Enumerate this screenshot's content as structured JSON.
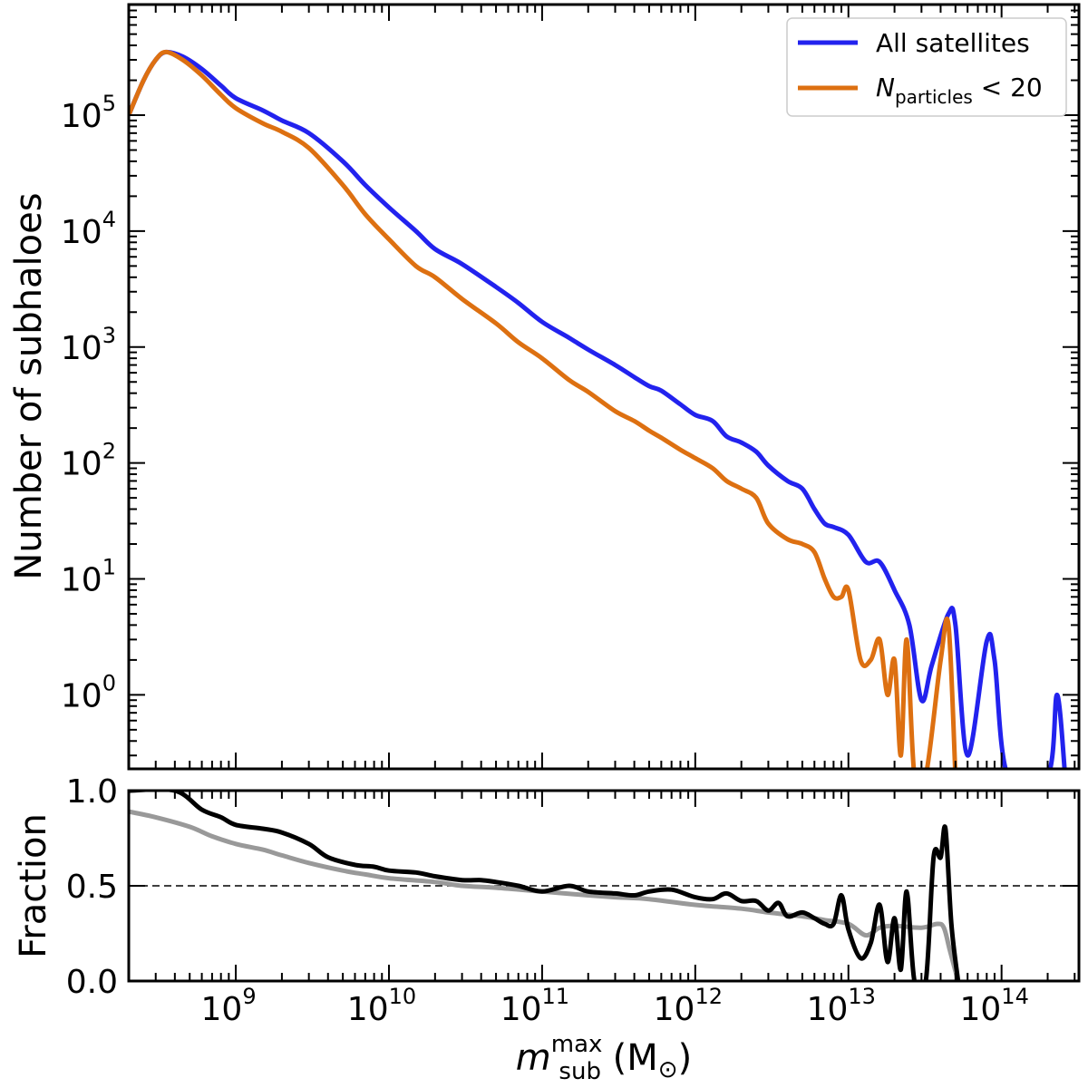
{
  "chart_data": [
    {
      "type": "line",
      "panel": "top",
      "ylabel": "Number of subhaloes",
      "xscale": "log",
      "yscale": "log",
      "xlim": [
        200000000.0,
        320000000000000.0
      ],
      "ylim": [
        0.23,
        900000.0
      ],
      "grid": false,
      "legend_position": "top-right",
      "y_tick_values": [
        1,
        10,
        100,
        1000,
        10000,
        100000
      ],
      "y_tick_labels": [
        {
          "base": "10",
          "exp": "0"
        },
        {
          "base": "10",
          "exp": "1"
        },
        {
          "base": "10",
          "exp": "2"
        },
        {
          "base": "10",
          "exp": "3"
        },
        {
          "base": "10",
          "exp": "4"
        },
        {
          "base": "10",
          "exp": "5"
        }
      ],
      "series": [
        {
          "name": "All satellites",
          "color": "#2222ee",
          "points": [
            [
              200000000.0,
              100000
            ],
            [
              250000000.0,
              200000
            ],
            [
              300000000.0,
              300000
            ],
            [
              350000000.0,
              350000
            ],
            [
              450000000.0,
              320000
            ],
            [
              600000000.0,
              250000
            ],
            [
              800000000.0,
              180000
            ],
            [
              1000000000.0,
              140000
            ],
            [
              1500000000.0,
              110000
            ],
            [
              2000000000.0,
              90000
            ],
            [
              3000000000.0,
              70000
            ],
            [
              5000000000.0,
              40000
            ],
            [
              7000000000.0,
              25000
            ],
            [
              10000000000.0,
              16000
            ],
            [
              15000000000.0,
              10000
            ],
            [
              20000000000.0,
              7000
            ],
            [
              30000000000.0,
              5200
            ],
            [
              50000000000.0,
              3300
            ],
            [
              70000000000.0,
              2400
            ],
            [
              100000000000.0,
              1650
            ],
            [
              150000000000.0,
              1200
            ],
            [
              200000000000.0,
              950
            ],
            [
              300000000000.0,
              700
            ],
            [
              400000000000.0,
              550
            ],
            [
              500000000000.0,
              460
            ],
            [
              600000000000.0,
              420
            ],
            [
              800000000000.0,
              320
            ],
            [
              1000000000000.0,
              260
            ],
            [
              1300000000000.0,
              230
            ],
            [
              1600000000000.0,
              170
            ],
            [
              2000000000000.0,
              150
            ],
            [
              2500000000000.0,
              125
            ],
            [
              3000000000000.0,
              95
            ],
            [
              4000000000000.0,
              70
            ],
            [
              5000000000000.0,
              60
            ],
            [
              6000000000000.0,
              40
            ],
            [
              7000000000000.0,
              30
            ],
            [
              8000000000000.0,
              28
            ],
            [
              10000000000000.0,
              24
            ],
            [
              13000000000000.0,
              14
            ],
            [
              16000000000000.0,
              14
            ],
            [
              20000000000000.0,
              8
            ],
            [
              25000000000000.0,
              4
            ],
            [
              30000000000000.0,
              0.9
            ],
            [
              35000000000000.0,
              1.8
            ],
            [
              45000000000000.0,
              5
            ],
            [
              50000000000000.0,
              4
            ],
            [
              60000000000000.0,
              0.3
            ],
            [
              80000000000000.0,
              2.9
            ],
            [
              90000000000000.0,
              2
            ],
            [
              110000000000000.0,
              0.2
            ],
            [
              200000000000000.0,
              0.2
            ],
            [
              230000000000000.0,
              1
            ],
            [
              260000000000000.0,
              0.2
            ]
          ]
        },
        {
          "name_parts": {
            "symbol": "N",
            "subscript": "particles",
            "suffix": " < 20"
          },
          "color": "#dd7011",
          "points": [
            [
              200000000.0,
              100000
            ],
            [
              250000000.0,
              200000
            ],
            [
              300000000.0,
              300000
            ],
            [
              350000000.0,
              350000
            ],
            [
              450000000.0,
              300000
            ],
            [
              600000000.0,
              220000
            ],
            [
              800000000.0,
              150000
            ],
            [
              1000000000.0,
              115000
            ],
            [
              1500000000.0,
              85000
            ],
            [
              2000000000.0,
              72000
            ],
            [
              3000000000.0,
              52000
            ],
            [
              5000000000.0,
              25000
            ],
            [
              7000000000.0,
              14000
            ],
            [
              10000000000.0,
              8500
            ],
            [
              15000000000.0,
              5000
            ],
            [
              20000000000.0,
              4000
            ],
            [
              30000000000.0,
              2600
            ],
            [
              50000000000.0,
              1600
            ],
            [
              70000000000.0,
              1100
            ],
            [
              100000000000.0,
              800
            ],
            [
              150000000000.0,
              520
            ],
            [
              200000000000.0,
              410
            ],
            [
              300000000000.0,
              280
            ],
            [
              400000000000.0,
              230
            ],
            [
              500000000000.0,
              190
            ],
            [
              600000000000.0,
              165
            ],
            [
              800000000000.0,
              130
            ],
            [
              1000000000000.0,
              110
            ],
            [
              1300000000000.0,
              90
            ],
            [
              1600000000000.0,
              70
            ],
            [
              2000000000000.0,
              60
            ],
            [
              2500000000000.0,
              50
            ],
            [
              3000000000000.0,
              30
            ],
            [
              4000000000000.0,
              22
            ],
            [
              5000000000000.0,
              20
            ],
            [
              6000000000000.0,
              17
            ],
            [
              7000000000000.0,
              10
            ],
            [
              8000000000000.0,
              7
            ],
            [
              9000000000000.0,
              7
            ],
            [
              10000000000000.0,
              8
            ],
            [
              12000000000000.0,
              2
            ],
            [
              14000000000000.0,
              2
            ],
            [
              16000000000000.0,
              3
            ],
            [
              18000000000000.0,
              1
            ],
            [
              20000000000000.0,
              2
            ],
            [
              22000000000000.0,
              0.3
            ],
            [
              24000000000000.0,
              3
            ],
            [
              27000000000000.0,
              0.2
            ],
            [
              32000000000000.0,
              0.2
            ],
            [
              40000000000000.0,
              2
            ],
            [
              45000000000000.0,
              4
            ],
            [
              50000000000000.0,
              0.2
            ]
          ]
        }
      ]
    },
    {
      "type": "line",
      "panel": "bottom",
      "ylabel": "Fraction",
      "xlabel_parts": {
        "symbol": "m",
        "superscript": "max",
        "subscript": "sub",
        "unit_open": " (M",
        "unit_symbol": "⊙",
        "unit_close": ")"
      },
      "xscale": "log",
      "xlim": [
        200000000.0,
        320000000000000.0
      ],
      "ylim": [
        0,
        1
      ],
      "y_ticks": [
        0,
        0.5,
        1
      ],
      "y_tick_labels": [
        "0.0",
        "0.5",
        "1.0"
      ],
      "x_tick_values": [
        1000000000.0,
        10000000000.0,
        100000000000.0,
        1000000000000.0,
        10000000000000.0,
        100000000000000.0
      ],
      "x_tick_labels": [
        {
          "base": "10",
          "exp": "9"
        },
        {
          "base": "10",
          "exp": "10"
        },
        {
          "base": "10",
          "exp": "11"
        },
        {
          "base": "10",
          "exp": "12"
        },
        {
          "base": "10",
          "exp": "13"
        },
        {
          "base": "10",
          "exp": "14"
        }
      ],
      "reference_line": {
        "y": 0.5,
        "style": "dashed",
        "color": "#000000"
      },
      "series": [
        {
          "color": "#000000",
          "points": [
            [
              200000000.0,
              1
            ],
            [
              400000000.0,
              1
            ],
            [
              600000000.0,
              0.9
            ],
            [
              800000000.0,
              0.86
            ],
            [
              1000000000.0,
              0.82
            ],
            [
              1500000000.0,
              0.8
            ],
            [
              2000000000.0,
              0.78
            ],
            [
              3000000000.0,
              0.72
            ],
            [
              4000000000.0,
              0.65
            ],
            [
              6000000000.0,
              0.61
            ],
            [
              8000000000.0,
              0.6
            ],
            [
              10000000000.0,
              0.58
            ],
            [
              15000000000.0,
              0.57
            ],
            [
              20000000000.0,
              0.55
            ],
            [
              30000000000.0,
              0.53
            ],
            [
              40000000000.0,
              0.53
            ],
            [
              50000000000.0,
              0.52
            ],
            [
              70000000000.0,
              0.5
            ],
            [
              100000000000.0,
              0.47
            ],
            [
              150000000000.0,
              0.5
            ],
            [
              200000000000.0,
              0.47
            ],
            [
              300000000000.0,
              0.46
            ],
            [
              400000000000.0,
              0.45
            ],
            [
              500000000000.0,
              0.47
            ],
            [
              700000000000.0,
              0.48
            ],
            [
              1000000000000.0,
              0.44
            ],
            [
              1300000000000.0,
              0.43
            ],
            [
              1600000000000.0,
              0.46
            ],
            [
              2000000000000.0,
              0.42
            ],
            [
              2500000000000.0,
              0.42
            ],
            [
              3000000000000.0,
              0.37
            ],
            [
              3500000000000.0,
              0.41
            ],
            [
              4000000000000.0,
              0.34
            ],
            [
              5000000000000.0,
              0.36
            ],
            [
              6000000000000.0,
              0.33
            ],
            [
              7000000000000.0,
              0.3
            ],
            [
              8000000000000.0,
              0.3
            ],
            [
              9000000000000.0,
              0.45
            ],
            [
              10000000000000.0,
              0.27
            ],
            [
              12000000000000.0,
              0.12
            ],
            [
              14000000000000.0,
              0.2
            ],
            [
              16000000000000.0,
              0.4
            ],
            [
              18000000000000.0,
              0.1
            ],
            [
              20000000000000.0,
              0.33
            ],
            [
              22000000000000.0,
              0.06
            ],
            [
              24000000000000.0,
              0.47
            ],
            [
              27000000000000.0,
              0
            ],
            [
              32000000000000.0,
              0
            ],
            [
              36000000000000.0,
              0.65
            ],
            [
              40000000000000.0,
              0.65
            ],
            [
              43000000000000.0,
              0.8
            ],
            [
              47000000000000.0,
              0.3
            ],
            [
              52000000000000.0,
              0
            ]
          ]
        },
        {
          "color": "#999999",
          "points": [
            [
              200000000.0,
              0.89
            ],
            [
              300000000.0,
              0.86
            ],
            [
              500000000.0,
              0.81
            ],
            [
              700000000.0,
              0.76
            ],
            [
              1000000000.0,
              0.72
            ],
            [
              1500000000.0,
              0.69
            ],
            [
              2000000000.0,
              0.66
            ],
            [
              3000000000.0,
              0.62
            ],
            [
              5000000000.0,
              0.58
            ],
            [
              7000000000.0,
              0.56
            ],
            [
              10000000000.0,
              0.54
            ],
            [
              20000000000.0,
              0.52
            ],
            [
              30000000000.0,
              0.5
            ],
            [
              50000000000.0,
              0.49
            ],
            [
              100000000000.0,
              0.47
            ],
            [
              200000000000.0,
              0.45
            ],
            [
              300000000000.0,
              0.44
            ],
            [
              500000000000.0,
              0.43
            ],
            [
              1000000000000.0,
              0.4
            ],
            [
              2000000000000.0,
              0.38
            ],
            [
              3000000000000.0,
              0.36
            ],
            [
              5000000000000.0,
              0.34
            ],
            [
              7000000000000.0,
              0.32
            ],
            [
              10000000000000.0,
              0.3
            ],
            [
              13000000000000.0,
              0.24
            ],
            [
              16000000000000.0,
              0.28
            ],
            [
              20000000000000.0,
              0.29
            ],
            [
              30000000000000.0,
              0.28
            ],
            [
              38000000000000.0,
              0.3
            ],
            [
              42000000000000.0,
              0.28
            ],
            [
              46000000000000.0,
              0.16
            ],
            [
              52000000000000.0,
              0
            ]
          ]
        }
      ]
    }
  ]
}
